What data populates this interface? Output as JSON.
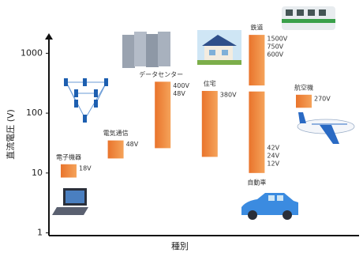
{
  "chart_data": {
    "type": "range-bar",
    "x_label": "種別",
    "y_label": "直流電圧 (V)",
    "categories": [
      "電子機器",
      "電気通信",
      "データセンター",
      "住宅",
      "鉄道",
      "自動車",
      "航空機"
    ],
    "lows": [
      8.4,
      17.5,
      26,
      18.6,
      290,
      10,
      123
    ],
    "highs": [
      14,
      35,
      335,
      235,
      2030,
      230,
      203
    ],
    "annotations": [
      [
        "18V"
      ],
      [
        "48V"
      ],
      [
        "400V",
        "48V"
      ],
      [
        "380V"
      ],
      [
        "1500V",
        "750V",
        "600V"
      ],
      [
        "42V",
        "24V",
        "12V"
      ],
      [
        "270V"
      ]
    ],
    "color": "#ef8a3e",
    "log_scale": true,
    "ylim": [
      0.9,
      2100
    ],
    "yticks": [
      1,
      10,
      100,
      1000
    ]
  }
}
